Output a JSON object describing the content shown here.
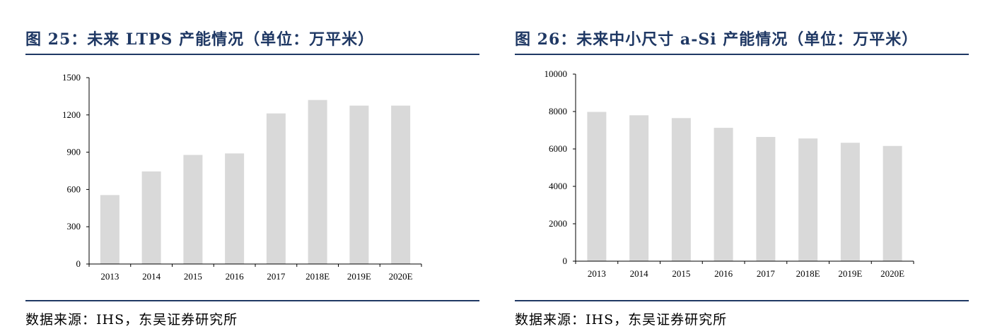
{
  "figures": [
    {
      "title": "图 25：未来 LTPS 产能情况（单位：万平米）",
      "source": "数据来源：IHS，东吴证券研究所"
    },
    {
      "title": "图 26：未来中小尺寸 a-Si 产能情况（单位：万平米）",
      "source": "数据来源：IHS，东吴证券研究所"
    }
  ],
  "chart_data": [
    {
      "type": "bar",
      "categories": [
        "2013",
        "2014",
        "2015",
        "2016",
        "2017",
        "2018E",
        "2019E",
        "2020E"
      ],
      "values": [
        555,
        745,
        878,
        890,
        1212,
        1320,
        1275,
        1275
      ],
      "ylim": [
        0,
        1500
      ],
      "yticks": [
        0,
        300,
        600,
        900,
        1200,
        1500
      ],
      "grid": false,
      "bar_color": "#d9d9d9"
    },
    {
      "type": "bar",
      "categories": [
        "2013",
        "2014",
        "2015",
        "2016",
        "2017",
        "2018E",
        "2019E",
        "2020E"
      ],
      "values": [
        7980,
        7800,
        7650,
        7130,
        6640,
        6560,
        6330,
        6160
      ],
      "ylim": [
        0,
        10000
      ],
      "yticks": [
        0,
        2000,
        4000,
        6000,
        8000,
        10000
      ],
      "grid": false,
      "bar_color": "#d9d9d9"
    }
  ]
}
